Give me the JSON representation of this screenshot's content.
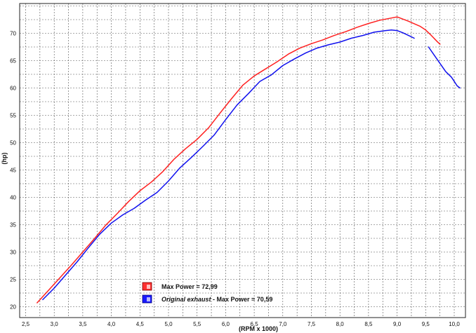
{
  "chart_data": {
    "type": "line",
    "xlabel": "(RPM x 1000)",
    "ylabel": "(hp)",
    "xlim": [
      2.5,
      10.25
    ],
    "ylim": [
      19,
      76
    ],
    "x_ticks": [
      "2,5",
      "3,0",
      "3,5",
      "4,0",
      "4,5",
      "5,0",
      "5,5",
      "6,0",
      "6,5",
      "7,0",
      "7,5",
      "8,0",
      "8,5",
      "9,0",
      "9,5",
      "10,0"
    ],
    "y_ticks": [
      "20",
      "25",
      "30",
      "35",
      "40",
      "45",
      "50",
      "55",
      "60",
      "65",
      "70"
    ],
    "grid": true,
    "legend_position": "bottom-left",
    "series": [
      {
        "name": "Max Power = 72,99",
        "color": "#ff2020",
        "x": [
          2.7,
          2.9,
          3.1,
          3.3,
          3.5,
          3.7,
          3.9,
          4.1,
          4.3,
          4.5,
          4.7,
          4.9,
          5.1,
          5.3,
          5.5,
          5.7,
          5.9,
          6.1,
          6.3,
          6.5,
          6.7,
          6.9,
          7.1,
          7.3,
          7.5,
          7.7,
          7.9,
          8.1,
          8.3,
          8.5,
          8.7,
          8.9,
          9.0,
          9.2,
          9.4,
          9.5,
          9.6,
          9.7,
          9.75
        ],
        "y": [
          20.7,
          23.0,
          25.3,
          27.6,
          30.0,
          32.4,
          34.9,
          37.0,
          39.2,
          41.2,
          42.8,
          44.7,
          47.0,
          48.9,
          50.6,
          52.7,
          55.4,
          58.0,
          60.5,
          62.2,
          63.5,
          64.8,
          66.2,
          67.3,
          68.1,
          68.8,
          69.6,
          70.3,
          71.1,
          71.8,
          72.4,
          72.8,
          73.0,
          72.2,
          71.3,
          70.6,
          69.6,
          68.5,
          68.0
        ]
      },
      {
        "name": "Original exhaust - Max Power = 70,59",
        "color": "#1010ee",
        "x": [
          2.8,
          3.0,
          3.2,
          3.4,
          3.6,
          3.8,
          4.0,
          4.2,
          4.4,
          4.6,
          4.8,
          5.0,
          5.2,
          5.4,
          5.6,
          5.8,
          6.0,
          6.2,
          6.4,
          6.6,
          6.8,
          7.0,
          7.2,
          7.4,
          7.6,
          7.8,
          8.0,
          8.2,
          8.4,
          8.6,
          8.8,
          8.9,
          9.0,
          9.1,
          9.2,
          9.3
        ],
        "y": [
          21.3,
          23.4,
          25.8,
          28.2,
          30.8,
          33.3,
          35.3,
          36.8,
          38.0,
          39.5,
          40.9,
          43.0,
          45.4,
          47.3,
          49.3,
          51.4,
          54.2,
          56.9,
          59.0,
          61.2,
          62.4,
          64.1,
          65.3,
          66.4,
          67.3,
          67.9,
          68.4,
          69.1,
          69.6,
          70.2,
          70.5,
          70.6,
          70.5,
          70.1,
          69.6,
          69.1
        ]
      },
      {
        "name": "",
        "color": "#1010ee",
        "x": [
          9.55,
          9.65,
          9.75,
          9.85,
          9.95,
          10.0,
          10.05,
          10.1
        ],
        "y": [
          67.5,
          66.0,
          64.5,
          63.0,
          62.0,
          61.2,
          60.4,
          60.0
        ]
      }
    ],
    "legend": {
      "entries": [
        {
          "text": "Max Power = 72,99",
          "color": "#ff2020"
        },
        {
          "prefix": "Original exhaust",
          "suffix": " - Max Power = 70,59",
          "color": "#1010ee"
        }
      ]
    }
  }
}
